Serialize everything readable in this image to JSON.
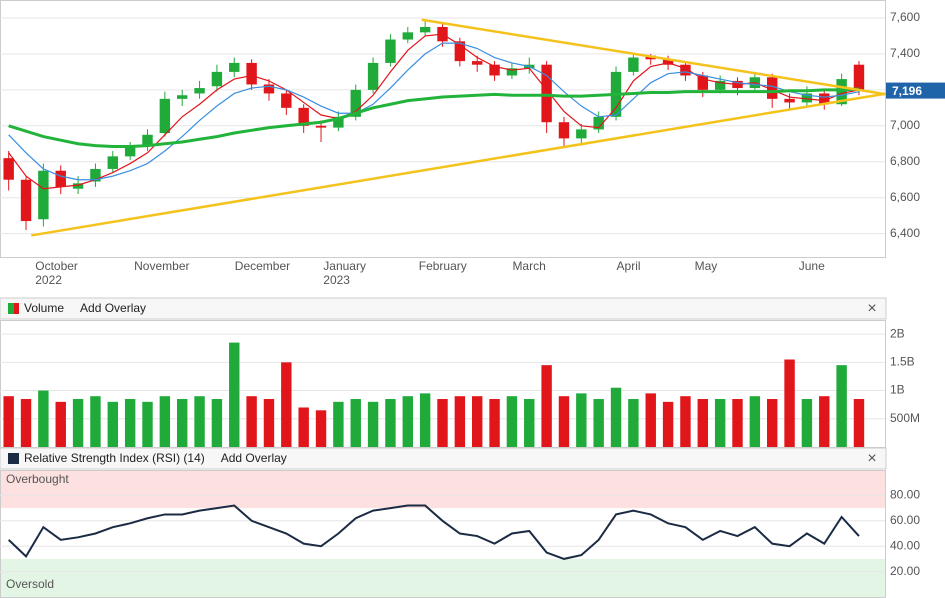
{
  "chart_data": [
    {
      "type": "candlestick",
      "categories": [
        null,
        null,
        null,
        null,
        null,
        null,
        null,
        null,
        null,
        null,
        null,
        null,
        null,
        null,
        null,
        null,
        null,
        null,
        null,
        null,
        null,
        null,
        null,
        null,
        null,
        null,
        null,
        null,
        null,
        null,
        null,
        null,
        null,
        null,
        null,
        null,
        null,
        null,
        null,
        null,
        null,
        null,
        null,
        null,
        null,
        null,
        null,
        null,
        null,
        null
      ],
      "open": [
        6820,
        6700,
        6480,
        6750,
        6650,
        6690,
        6760,
        6830,
        6890,
        6960,
        7150,
        7180,
        7220,
        7300,
        7350,
        7230,
        7180,
        7100,
        7000,
        6990,
        7050,
        7200,
        7350,
        7480,
        7520,
        7550,
        7470,
        7360,
        7340,
        7280,
        7320,
        7340,
        7020,
        6930,
        6980,
        7050,
        7300,
        7390,
        7370,
        7340,
        7280,
        7200,
        7250,
        7210,
        7270,
        7150,
        7130,
        7180,
        7120,
        7340
      ],
      "high": [
        6860,
        6720,
        6790,
        6780,
        6720,
        6790,
        6860,
        6910,
        6980,
        7190,
        7200,
        7250,
        7340,
        7380,
        7370,
        7260,
        7200,
        7120,
        7030,
        7080,
        7230,
        7380,
        7510,
        7550,
        7590,
        7570,
        7490,
        7390,
        7360,
        7350,
        7380,
        7360,
        7050,
        7010,
        7080,
        7330,
        7400,
        7400,
        7390,
        7360,
        7300,
        7280,
        7270,
        7300,
        7290,
        7180,
        7220,
        7200,
        7290,
        7360
      ],
      "low": [
        6640,
        6420,
        6440,
        6620,
        6620,
        6660,
        6740,
        6810,
        6860,
        6940,
        7110,
        7150,
        7190,
        7270,
        7200,
        7140,
        7060,
        6960,
        6910,
        6970,
        7030,
        7180,
        7330,
        7460,
        7500,
        7440,
        7330,
        7300,
        7250,
        7260,
        7290,
        6960,
        6880,
        6890,
        6960,
        7030,
        7280,
        7340,
        7310,
        7250,
        7160,
        7180,
        7170,
        7190,
        7100,
        7090,
        7110,
        7090,
        7110,
        7170
      ],
      "close": [
        6700,
        6470,
        6750,
        6660,
        6680,
        6760,
        6830,
        6880,
        6950,
        7150,
        7170,
        7210,
        7300,
        7350,
        7230,
        7180,
        7100,
        7000,
        6990,
        7050,
        7200,
        7350,
        7480,
        7520,
        7550,
        7470,
        7360,
        7340,
        7280,
        7320,
        7340,
        7020,
        6930,
        6980,
        7050,
        7300,
        7380,
        7370,
        7340,
        7280,
        7200,
        7250,
        7210,
        7270,
        7150,
        7130,
        7180,
        7120,
        7260,
        7196
      ],
      "up_color": "#1faa3a",
      "down_color": "#e0161b",
      "series": [
        {
          "color": "#e0161b",
          "values": [
            6850,
            6720,
            6650,
            6660,
            6670,
            6700,
            6740,
            6790,
            6850,
            6950,
            7050,
            7120,
            7200,
            7260,
            7280,
            7250,
            7200,
            7130,
            7060,
            7040,
            7080,
            7170,
            7300,
            7420,
            7500,
            7510,
            7450,
            7380,
            7330,
            7310,
            7320,
            7200,
            7080,
            7000,
            6990,
            7100,
            7250,
            7330,
            7350,
            7320,
            7260,
            7240,
            7230,
            7240,
            7200,
            7160,
            7150,
            7140,
            7180,
            7200
          ]
        },
        {
          "color": "#3a8fe0",
          "values": [
            6950,
            6850,
            6760,
            6720,
            6700,
            6700,
            6720,
            6750,
            6790,
            6860,
            6940,
            7030,
            7110,
            7180,
            7210,
            7220,
            7200,
            7160,
            7110,
            7070,
            7070,
            7120,
            7210,
            7310,
            7400,
            7460,
            7460,
            7430,
            7380,
            7350,
            7330,
            7280,
            7190,
            7110,
            7050,
            7060,
            7150,
            7240,
            7290,
            7300,
            7280,
            7260,
            7240,
            7230,
            7220,
            7190,
            7170,
            7160,
            7170,
            7190
          ]
        },
        {
          "color": "#22b33a",
          "values": [
            7000,
            6970,
            6940,
            6920,
            6900,
            6890,
            6885,
            6885,
            6890,
            6900,
            6910,
            6925,
            6940,
            6960,
            6975,
            6990,
            7000,
            7010,
            7020,
            7040,
            7070,
            7100,
            7120,
            7140,
            7150,
            7160,
            7165,
            7170,
            7175,
            7170,
            7170,
            7170,
            7165,
            7165,
            7170,
            7175,
            7180,
            7185,
            7185,
            7190,
            7190,
            7190,
            7190,
            7190,
            7190,
            7195,
            7195,
            7200,
            7200,
            7205
          ]
        }
      ],
      "trendlines": [
        {
          "color": "#f5c21b",
          "x": [
            1.3,
            50.6
          ],
          "y": [
            6390,
            7180
          ]
        },
        {
          "color": "#f5c21b",
          "x": [
            23.8,
            50.6
          ],
          "y": [
            7590,
            7175
          ]
        }
      ],
      "last_price": {
        "value": 7196,
        "label": "7,196"
      },
      "xlim": [
        -0.5,
        50.5
      ],
      "ylim": [
        6270,
        7700
      ],
      "yticks": [
        {
          "value": 6400,
          "label": "6,400"
        },
        {
          "value": 6600,
          "label": "6,600"
        },
        {
          "value": 6800,
          "label": "6,800"
        },
        {
          "value": 7000,
          "label": "7,000"
        },
        {
          "value": 7200,
          "label": "7,200"
        },
        {
          "value": 7400,
          "label": "7,400"
        },
        {
          "value": 7600,
          "label": "7,600"
        }
      ],
      "xticks": [
        {
          "value": 1.3,
          "label": "October"
        },
        {
          "value": 7,
          "label": "November"
        },
        {
          "value": 12.8,
          "label": "December"
        },
        {
          "value": 17.9,
          "label": "January"
        },
        {
          "value": 23.4,
          "label": "February"
        },
        {
          "value": 28.8,
          "label": "March"
        },
        {
          "value": 34.8,
          "label": "April"
        },
        {
          "value": 39.3,
          "label": "May"
        },
        {
          "value": 45.3,
          "label": "June"
        }
      ],
      "year_labels": [
        {
          "value": 1.3,
          "label": "2022"
        },
        {
          "value": 17.9,
          "label": "2023"
        }
      ],
      "grid": true
    },
    {
      "type": "bar",
      "title": "Volume",
      "button": "Add Overlay",
      "close": "×",
      "values": [
        900000000,
        850000000,
        1000000000,
        800000000,
        850000000,
        900000000,
        800000000,
        850000000,
        800000000,
        900000000,
        850000000,
        900000000,
        850000000,
        1850000000,
        900000000,
        850000000,
        1500000000,
        700000000,
        650000000,
        800000000,
        850000000,
        800000000,
        850000000,
        900000000,
        950000000,
        850000000,
        900000000,
        900000000,
        850000000,
        900000000,
        850000000,
        1450000000,
        900000000,
        950000000,
        850000000,
        1050000000,
        850000000,
        950000000,
        800000000,
        900000000,
        850000000,
        850000000,
        850000000,
        900000000,
        850000000,
        1550000000,
        850000000,
        900000000,
        1450000000,
        850000000
      ],
      "ylim": [
        0,
        2250000000
      ],
      "yticks": [
        {
          "value": 500000000,
          "label": "500M"
        },
        {
          "value": 1000000000,
          "label": "1B"
        },
        {
          "value": 1500000000,
          "label": "1.5B"
        },
        {
          "value": 2000000000,
          "label": "2B"
        }
      ],
      "grid": true
    },
    {
      "type": "line",
      "title": "Relative Strength Index (RSI) (14)",
      "button": "Add Overlay",
      "close": "×",
      "color": "#1c2b44",
      "values": [
        45,
        32,
        55,
        45,
        47,
        50,
        55,
        58,
        62,
        65,
        65,
        68,
        70,
        72,
        60,
        55,
        50,
        42,
        40,
        50,
        62,
        68,
        70,
        72,
        72,
        60,
        50,
        48,
        42,
        50,
        52,
        35,
        30,
        33,
        45,
        65,
        68,
        65,
        58,
        55,
        45,
        52,
        48,
        55,
        42,
        40,
        50,
        42,
        63,
        48
      ],
      "bands": [
        {
          "label": "Overbought",
          "range": [
            70,
            100
          ],
          "color": "#fde0e0"
        },
        {
          "label": "Oversold",
          "range": [
            0,
            30
          ],
          "color": "#e3f6e6"
        }
      ],
      "ylim": [
        0,
        100
      ],
      "yticks": [
        {
          "value": 20,
          "label": "20.00"
        },
        {
          "value": 40,
          "label": "40.00"
        },
        {
          "value": 60,
          "label": "60.00"
        },
        {
          "value": 80,
          "label": "80.00"
        }
      ],
      "grid": true
    }
  ]
}
